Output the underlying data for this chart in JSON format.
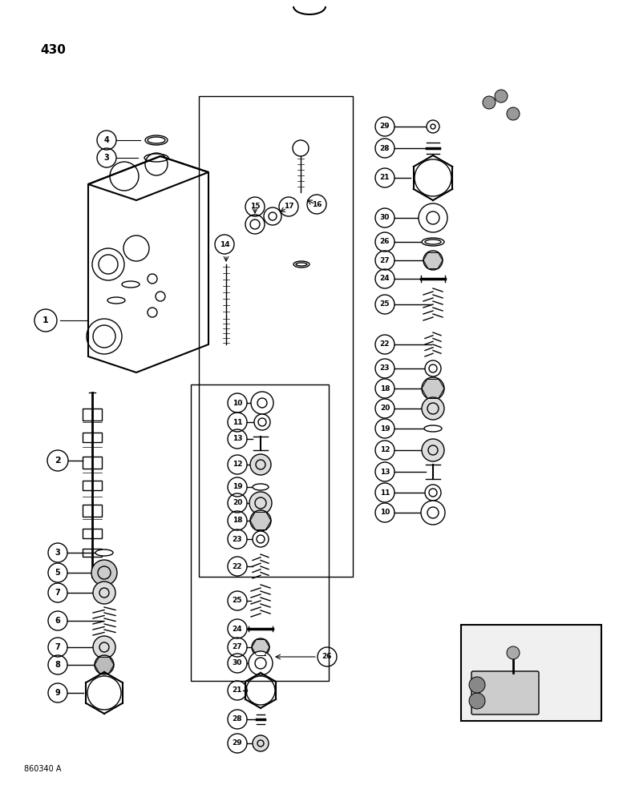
{
  "title": "430",
  "footer": "860340 A",
  "bg_color": "#ffffff",
  "page_number": "430",
  "fig_width": 7.72,
  "fig_height": 10.0,
  "dpi": 100
}
